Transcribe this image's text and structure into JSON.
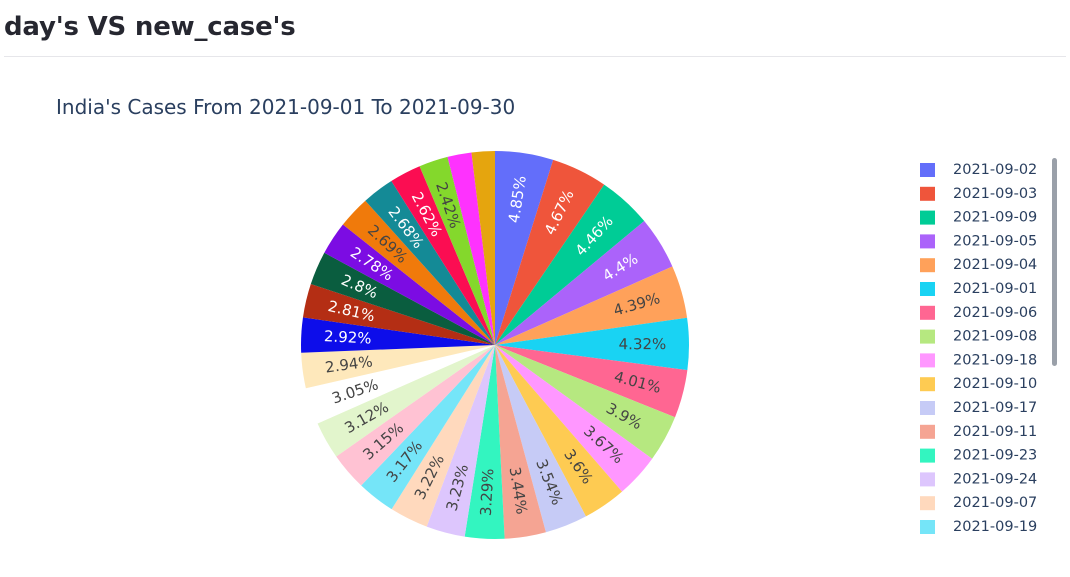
{
  "page": {
    "heading": "day's VS new_case's"
  },
  "chart_data": {
    "type": "pie",
    "title": "India's Cases From 2021-09-01 To 2021-09-30",
    "legend_placement": "right",
    "sort": "descending",
    "slices": [
      {
        "label": "2021-09-02",
        "value": 4.85,
        "text": "4.85%",
        "color": "#636efa"
      },
      {
        "label": "2021-09-03",
        "value": 4.67,
        "text": "4.67%",
        "color": "#ef553b"
      },
      {
        "label": "2021-09-09",
        "value": 4.46,
        "text": "4.46%",
        "color": "#00cc96"
      },
      {
        "label": "2021-09-05",
        "value": 4.4,
        "text": "4.4%",
        "color": "#ab63fa"
      },
      {
        "label": "2021-09-04",
        "value": 4.39,
        "text": "4.39%",
        "color": "#ffa15a"
      },
      {
        "label": "2021-09-01",
        "value": 4.32,
        "text": "4.32%",
        "color": "#19d3f3"
      },
      {
        "label": "2021-09-06",
        "value": 4.01,
        "text": "4.01%",
        "color": "#ff6692"
      },
      {
        "label": "2021-09-08",
        "value": 3.9,
        "text": "3.9%",
        "color": "#b6e880"
      },
      {
        "label": "2021-09-18",
        "value": 3.67,
        "text": "3.67%",
        "color": "#ff97ff"
      },
      {
        "label": "2021-09-10",
        "value": 3.6,
        "text": "3.6%",
        "color": "#fecb52"
      },
      {
        "label": "2021-09-17",
        "value": 3.54,
        "text": "3.54%",
        "color": "#c6cbf6"
      },
      {
        "label": "2021-09-11",
        "value": 3.44,
        "text": "3.44%",
        "color": "#f5a493"
      },
      {
        "label": "2021-09-23",
        "value": 3.29,
        "text": "3.29%",
        "color": "#33f5c0"
      },
      {
        "label": "2021-09-24",
        "value": 3.23,
        "text": "3.23%",
        "color": "#ddc6fd"
      },
      {
        "label": "2021-09-07",
        "value": 3.22,
        "text": "3.22%",
        "color": "#ffd9bd"
      },
      {
        "label": "2021-09-19",
        "value": 3.17,
        "text": "3.17%",
        "color": "#75e5f8"
      },
      {
        "value": 3.15,
        "text": "3.15%",
        "color": "#ffc2d3"
      },
      {
        "value": 3.12,
        "text": "3.12%",
        "color": "#e2f5cc"
      },
      {
        "value": 3.05,
        "text": "3.05%",
        "color": "#ffffff"
      },
      {
        "value": 2.94,
        "text": "2.94%",
        "color": "#fee8bb"
      },
      {
        "value": 2.92,
        "text": "2.92%",
        "color": "#0d0dea"
      },
      {
        "value": 2.81,
        "text": "2.81%",
        "color": "#b42e14"
      },
      {
        "value": 2.8,
        "text": "2.8%",
        "color": "#0a5d3f"
      },
      {
        "value": 2.78,
        "text": "2.78%",
        "color": "#7c0ce3"
      },
      {
        "value": 2.69,
        "text": "2.69%",
        "color": "#f07a0b"
      },
      {
        "value": 2.68,
        "text": "2.68%",
        "color": "#148a96"
      },
      {
        "value": 2.62,
        "text": "2.62%",
        "color": "#fb0d52"
      },
      {
        "value": 2.42,
        "text": "2.42%",
        "color": "#84d82c"
      },
      {
        "value": 2.0,
        "text": "",
        "color": "#fe32fe"
      },
      {
        "value": 1.94,
        "text": "",
        "color": "#e5a50e"
      }
    ]
  }
}
